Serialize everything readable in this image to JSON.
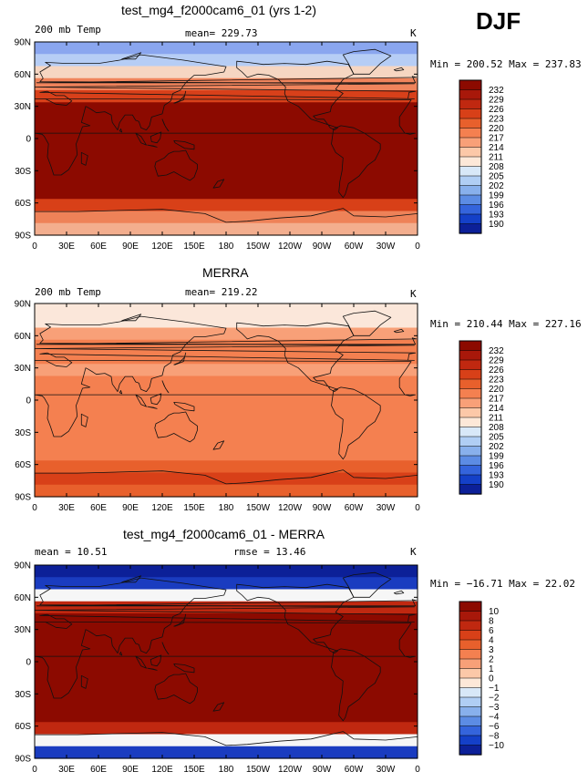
{
  "season": "DJF",
  "x_ticks": [
    "0",
    "30E",
    "60E",
    "90E",
    "120E",
    "150E",
    "180",
    "150W",
    "120W",
    "90W",
    "60W",
    "30W",
    "0"
  ],
  "y_ticks": [
    "90N",
    "60N",
    "30N",
    "0",
    "30S",
    "60S",
    "90S"
  ],
  "panels": [
    {
      "title": "test_mg4_f2000cam6_01 (yrs 1-2)",
      "left_label": "200 mb Temp",
      "center_label": "mean= 229.73",
      "units": "K",
      "minmax": "Min = 200.52  Max = 237.83",
      "colorbar_labels": [
        "232",
        "229",
        "226",
        "223",
        "220",
        "217",
        "214",
        "211",
        "208",
        "205",
        "202",
        "199",
        "196",
        "193",
        "190"
      ],
      "colorbar_colors": [
        "#8c0a00",
        "#a8180a",
        "#c02810",
        "#d84018",
        "#e8602c",
        "#f48050",
        "#f8a078",
        "#fcc8a8",
        "#fde8d8",
        "#d8e8f8",
        "#b0cef4",
        "#88b0ec",
        "#5c8ce4",
        "#3464dc",
        "#1440c8",
        "#0c2098"
      ],
      "band_colors": [
        "#8aa6ef",
        "#b6cdf5",
        "#f6d6c2",
        "#f0845c",
        "#d8401a",
        "#8c0a00",
        "#8c0a00",
        "#8c0a00",
        "#8c0a00",
        "#8c0a00",
        "#8c0a00",
        "#8c0a00",
        "#8c0a00",
        "#d84018",
        "#ee8258",
        "#f3ae8e"
      ]
    },
    {
      "title": "MERRA",
      "left_label": "200 mb Temp",
      "center_label": "mean= 219.22",
      "units": "K",
      "minmax": "Min = 210.44  Max = 227.16",
      "colorbar_labels": [
        "232",
        "229",
        "226",
        "223",
        "220",
        "217",
        "214",
        "211",
        "208",
        "205",
        "202",
        "199",
        "196",
        "193",
        "190"
      ],
      "colorbar_colors": [
        "#8c0a00",
        "#a8180a",
        "#c02810",
        "#d84018",
        "#e8602c",
        "#f48050",
        "#f8a078",
        "#fcc8a8",
        "#fde8d8",
        "#d8e8f8",
        "#b0cef4",
        "#88b0ec",
        "#5c8ce4",
        "#3464dc",
        "#1440c8",
        "#0c2098"
      ],
      "band_colors": [
        "#fbe7da",
        "#fbe7da",
        "#f8a078",
        "#f48050",
        "#f48050",
        "#f8a078",
        "#f48050",
        "#f48050",
        "#f48050",
        "#f48050",
        "#f48050",
        "#f48050",
        "#f48050",
        "#e8602c",
        "#d84018",
        "#e8602c"
      ]
    },
    {
      "title": "test_mg4_f2000cam6_01 - MERRA",
      "left_label": "mean =  10.51",
      "center_label": "rmse =  13.46",
      "units": "K",
      "minmax": "Min = −16.71  Max =  22.02",
      "colorbar_labels": [
        "10",
        "8",
        "6",
        "4",
        "3",
        "2",
        "1",
        "0",
        "−1",
        "−2",
        "−3",
        "−4",
        "−6",
        "−8",
        "−10"
      ],
      "colorbar_colors": [
        "#8c0a00",
        "#a8180a",
        "#c02810",
        "#d84018",
        "#e8602c",
        "#f48050",
        "#f8a078",
        "#fcc8a8",
        "#fde8d8",
        "#d8e8f8",
        "#b0cef4",
        "#88b0ec",
        "#5c8ce4",
        "#3464dc",
        "#1440c8",
        "#0c2098"
      ],
      "band_colors": [
        "#0c2098",
        "#1a3cc0",
        "#f6f6f6",
        "#c02810",
        "#8c0a00",
        "#8c0a00",
        "#8c0a00",
        "#8c0a00",
        "#8c0a00",
        "#8c0a00",
        "#8c0a00",
        "#8c0a00",
        "#8c0a00",
        "#c02810",
        "#f6f6f6",
        "#1a3cc0"
      ]
    }
  ]
}
